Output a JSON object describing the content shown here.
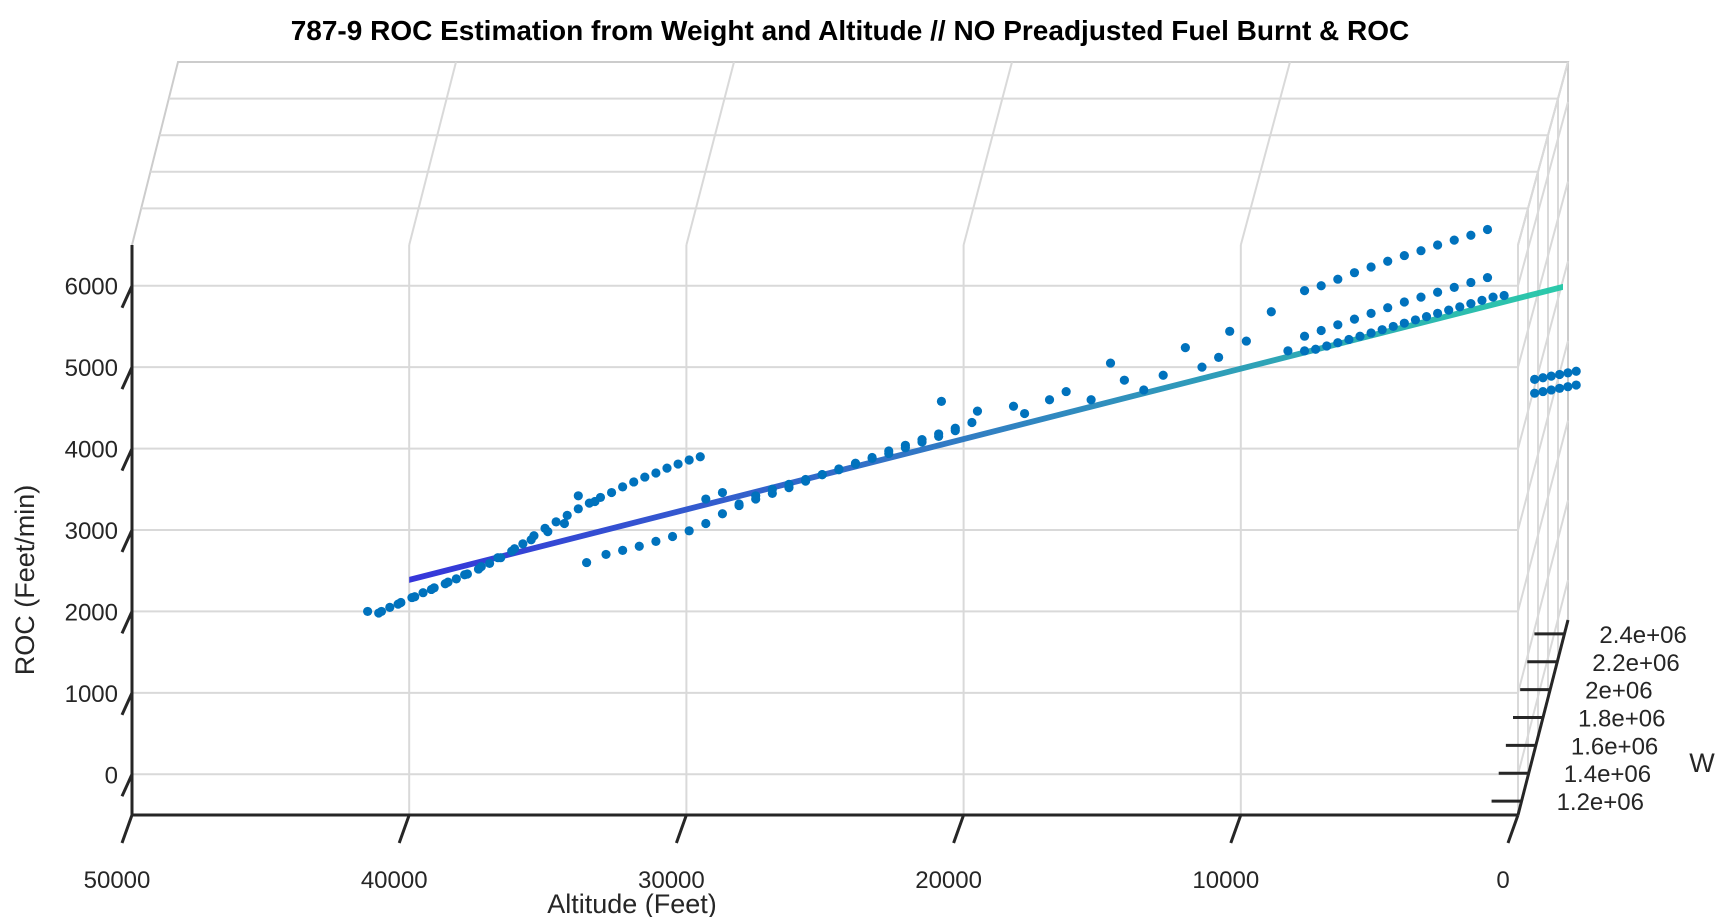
{
  "chart_data": {
    "type": "scatter",
    "title": "787-9 ROC Estimation from Weight and Altitude // NO Preadjusted Fuel Burnt & ROC",
    "xlabel": "Altitude (Feet)",
    "ylabel": "ROC (Feet/min)",
    "zlabel": "W",
    "x_ticks": [
      "0",
      "10000",
      "20000",
      "30000",
      "40000",
      "50000"
    ],
    "y_ticks": [
      "0",
      "1000",
      "2000",
      "3000",
      "4000",
      "5000",
      "6000"
    ],
    "z_ticks": [
      "1.2e+06",
      "1.4e+06",
      "1.6e+06",
      "1.8e+06",
      "2e+06",
      "2.2e+06",
      "2.4e+06"
    ],
    "xlim": [
      50000,
      0
    ],
    "ylim": [
      -500,
      6500
    ],
    "grid": true,
    "colors": {
      "points": "#0072BD",
      "fit_low": "#2b2bd8",
      "fit_high": "#21c7a6",
      "grid": "#d9d9d9",
      "axis": "#262626"
    },
    "fit_surface": {
      "from": {
        "alt": 40000,
        "roc": 2400
      },
      "to": {
        "alt": 0,
        "roc": 5900
      }
    },
    "series": [
      {
        "values": [
          [
            41500,
            2000
          ],
          [
            41100,
            1980
          ],
          [
            40700,
            2050
          ],
          [
            40300,
            2110
          ],
          [
            39900,
            2170
          ],
          [
            39500,
            2230
          ],
          [
            39100,
            2290
          ],
          [
            38700,
            2340
          ],
          [
            38300,
            2400
          ],
          [
            37900,
            2460
          ],
          [
            37500,
            2520
          ],
          [
            37100,
            2590
          ],
          [
            36700,
            2660
          ],
          [
            36300,
            2740
          ],
          [
            35900,
            2830
          ],
          [
            35500,
            2930
          ],
          [
            35100,
            3020
          ],
          [
            34700,
            3100
          ],
          [
            34300,
            3180
          ],
          [
            33900,
            3260
          ],
          [
            33500,
            3330
          ],
          [
            33100,
            3400
          ],
          [
            32700,
            3460
          ],
          [
            32300,
            3530
          ],
          [
            31900,
            3590
          ],
          [
            31500,
            3650
          ],
          [
            31100,
            3700
          ],
          [
            30700,
            3760
          ],
          [
            30300,
            3810
          ],
          [
            29900,
            3860
          ],
          [
            29500,
            3900
          ],
          [
            41000,
            2000
          ],
          [
            40400,
            2090
          ],
          [
            39800,
            2180
          ],
          [
            39200,
            2270
          ],
          [
            38600,
            2360
          ],
          [
            38000,
            2450
          ],
          [
            37400,
            2550
          ],
          [
            36800,
            2660
          ],
          [
            36200,
            2770
          ],
          [
            35600,
            2880
          ],
          [
            35000,
            2980
          ],
          [
            34400,
            3080
          ],
          [
            33900,
            3420
          ],
          [
            33300,
            3350
          ],
          [
            33600,
            2600
          ],
          [
            32900,
            2700
          ],
          [
            32300,
            2750
          ],
          [
            31700,
            2800
          ],
          [
            31100,
            2860
          ],
          [
            30500,
            2920
          ],
          [
            29900,
            2990
          ],
          [
            29300,
            3080
          ],
          [
            28700,
            3200
          ],
          [
            28100,
            3320
          ],
          [
            27500,
            3420
          ],
          [
            26900,
            3500
          ],
          [
            26300,
            3560
          ],
          [
            25700,
            3620
          ],
          [
            25100,
            3680
          ],
          [
            24500,
            3740
          ],
          [
            23900,
            3810
          ],
          [
            23300,
            3890
          ],
          [
            22700,
            3970
          ],
          [
            22100,
            4040
          ],
          [
            21500,
            4110
          ],
          [
            20900,
            4180
          ],
          [
            20300,
            4250
          ],
          [
            19700,
            4320
          ],
          [
            29300,
            3380
          ],
          [
            28700,
            3460
          ],
          [
            28100,
            3300
          ],
          [
            27500,
            3380
          ],
          [
            26900,
            3450
          ],
          [
            26300,
            3520
          ],
          [
            25700,
            3600
          ],
          [
            25100,
            3680
          ],
          [
            24500,
            3750
          ],
          [
            23900,
            3820
          ],
          [
            23300,
            3880
          ],
          [
            22700,
            3940
          ],
          [
            22100,
            4010
          ],
          [
            21500,
            4080
          ],
          [
            20900,
            4150
          ],
          [
            20300,
            4220
          ],
          [
            20800,
            4580
          ],
          [
            19500,
            4460
          ],
          [
            18200,
            4520
          ],
          [
            17800,
            4430
          ],
          [
            16900,
            4600
          ],
          [
            16300,
            4700
          ],
          [
            15400,
            4600
          ],
          [
            14700,
            5050
          ],
          [
            14200,
            4840
          ],
          [
            13500,
            4720
          ],
          [
            12800,
            4900
          ],
          [
            12000,
            5240
          ],
          [
            11400,
            5000
          ],
          [
            10800,
            5120
          ],
          [
            10400,
            5440
          ],
          [
            9800,
            5320
          ],
          [
            8900,
            5680
          ],
          [
            8300,
            5200
          ],
          [
            7700,
            5940
          ],
          [
            7100,
            6000
          ],
          [
            6500,
            6080
          ],
          [
            5900,
            6160
          ],
          [
            5300,
            6230
          ],
          [
            4700,
            6300
          ],
          [
            4100,
            6370
          ],
          [
            3500,
            6430
          ],
          [
            2900,
            6500
          ],
          [
            2300,
            6560
          ],
          [
            1700,
            6620
          ],
          [
            1100,
            6690
          ],
          [
            7700,
            5380
          ],
          [
            7100,
            5450
          ],
          [
            6500,
            5520
          ],
          [
            5900,
            5590
          ],
          [
            5300,
            5660
          ],
          [
            4700,
            5730
          ],
          [
            4100,
            5800
          ],
          [
            3500,
            5860
          ],
          [
            2900,
            5920
          ],
          [
            2300,
            5980
          ],
          [
            1700,
            6040
          ],
          [
            1100,
            6100
          ],
          [
            7700,
            5200
          ],
          [
            7300,
            5220
          ],
          [
            6900,
            5260
          ],
          [
            6500,
            5300
          ],
          [
            6100,
            5340
          ],
          [
            5700,
            5380
          ],
          [
            5300,
            5420
          ],
          [
            4900,
            5460
          ],
          [
            4500,
            5500
          ],
          [
            4100,
            5540
          ],
          [
            3700,
            5580
          ],
          [
            3300,
            5620
          ],
          [
            2900,
            5660
          ],
          [
            2500,
            5700
          ],
          [
            2100,
            5740
          ],
          [
            1700,
            5780
          ],
          [
            1300,
            5820
          ],
          [
            900,
            5860
          ],
          [
            500,
            5880
          ],
          [
            -600,
            4850
          ],
          [
            -900,
            4870
          ],
          [
            -1200,
            4890
          ],
          [
            -1500,
            4910
          ],
          [
            -1800,
            4930
          ],
          [
            -2100,
            4950
          ],
          [
            -600,
            4680
          ],
          [
            -900,
            4700
          ],
          [
            -1200,
            4720
          ],
          [
            -1500,
            4740
          ],
          [
            -1800,
            4760
          ],
          [
            -2100,
            4780
          ]
        ]
      }
    ]
  }
}
